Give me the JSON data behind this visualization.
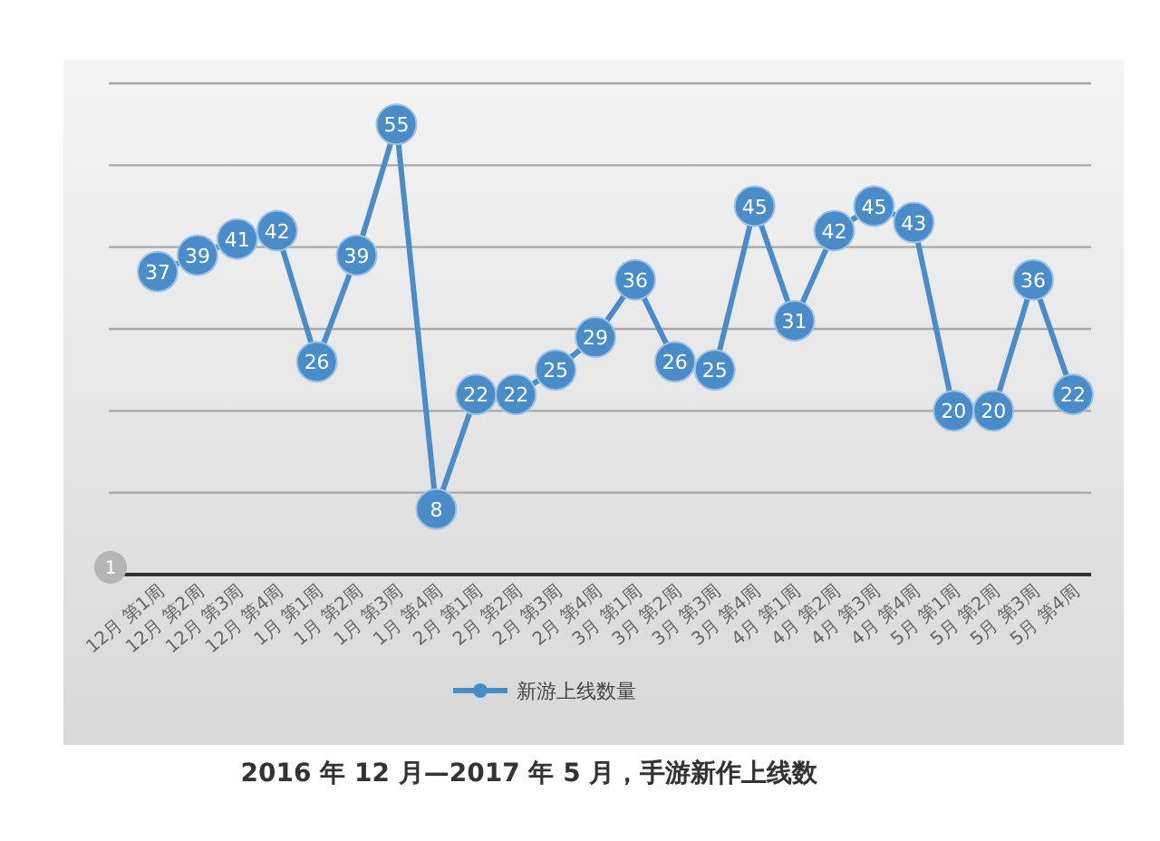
{
  "chart_data": {
    "type": "line",
    "title": "2016 年 12 月—2017 年 5 月，手游新作上线数",
    "categories": [
      "12月 第1周",
      "12月 第2周",
      "12月 第3周",
      "12月 第4周",
      "1月 第1周",
      "1月 第2周",
      "1月 第3周",
      "1月 第4周",
      "2月 第1周",
      "2月 第2周",
      "2月 第3周",
      "2月 第4周",
      "3月 第1周",
      "3月 第2周",
      "3月 第3周",
      "3月 第4周",
      "4月 第1周",
      "4月 第2周",
      "4月 第3周",
      "4月 第4周",
      "5月 第1周",
      "5月 第2周",
      "5月 第3周",
      "5月 第4周"
    ],
    "series": [
      {
        "name": "新游上线数量",
        "color": "#4a8cc8",
        "values": [
          37,
          39,
          41,
          42,
          26,
          39,
          55,
          8,
          22,
          22,
          25,
          29,
          36,
          26,
          25,
          45,
          31,
          42,
          45,
          43,
          20,
          20,
          36,
          22
        ]
      }
    ],
    "ylim": [
      0,
      60
    ],
    "yticks": [
      {
        "value": 0,
        "label": null
      },
      {
        "value": 10,
        "label": null
      },
      {
        "value": 20,
        "label": null
      },
      {
        "value": 30,
        "label": null
      },
      {
        "value": 40,
        "label": null
      },
      {
        "value": 50,
        "label": null
      },
      {
        "value": 60,
        "label": null
      }
    ],
    "tick_labels": "x",
    "grid": "y",
    "legend": "bottom",
    "marker": "circle",
    "line_style": "solid",
    "data_labels": true,
    "annotations": [
      "1"
    ]
  }
}
